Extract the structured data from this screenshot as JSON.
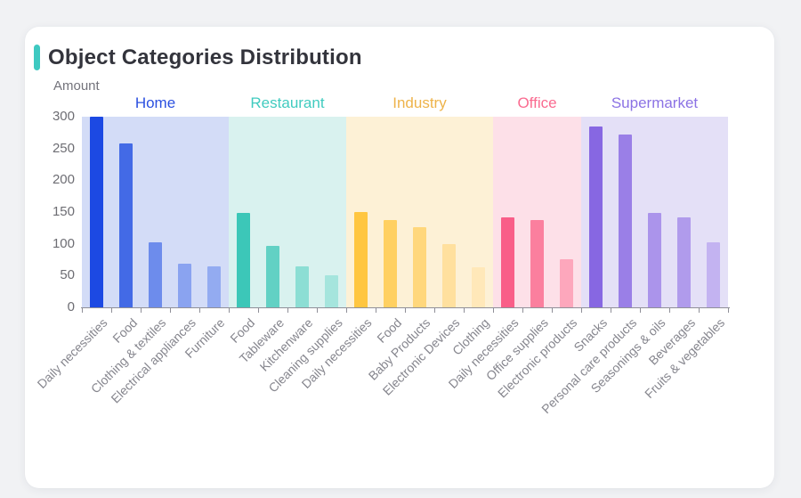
{
  "card": {
    "title": "Object Categories Distribution",
    "accent_color": "#3ec9c1"
  },
  "chart_data": {
    "type": "bar",
    "title": "Object Categories Distribution",
    "ylabel": "Amount",
    "xlabel": "",
    "ylim": [
      0,
      300
    ],
    "yticks": [
      0,
      50,
      100,
      150,
      200,
      250,
      300
    ],
    "grid": false,
    "legend_position": "none",
    "groups": [
      {
        "name": "Home",
        "label_color": "#2b50e0",
        "band_color": "#d3dcf7",
        "bar_colors": [
          "#1c49e3",
          "#436ae6",
          "#6d8cec",
          "#8aa3f0",
          "#93abf1"
        ],
        "items": [
          {
            "label": "Daily necessities",
            "value": 300
          },
          {
            "label": "Food",
            "value": 258
          },
          {
            "label": "Clothing & textiles",
            "value": 102
          },
          {
            "label": "Electrical appliances",
            "value": 69
          },
          {
            "label": "Furniture",
            "value": 64
          }
        ]
      },
      {
        "name": "Restaurant",
        "label_color": "#40cbbf",
        "band_color": "#d9f2ef",
        "bar_colors": [
          "#3cc7b8",
          "#62d1c4",
          "#8cded4",
          "#a5e5dd"
        ],
        "items": [
          {
            "label": "Food",
            "value": 148
          },
          {
            "label": "Tableware",
            "value": 97
          },
          {
            "label": "Kitchenware",
            "value": 65
          },
          {
            "label": "Cleaning supplies",
            "value": 50
          }
        ]
      },
      {
        "name": "Industry",
        "label_color": "#eeb34a",
        "band_color": "#fdf1d6",
        "bar_colors": [
          "#ffc640",
          "#ffd061",
          "#ffd77c",
          "#ffe09e",
          "#ffe8b9"
        ],
        "items": [
          {
            "label": "Daily necessities",
            "value": 150
          },
          {
            "label": "Food",
            "value": 138
          },
          {
            "label": "Baby Products",
            "value": 126
          },
          {
            "label": "Electronic Devices",
            "value": 100
          },
          {
            "label": "Clothing",
            "value": 63
          }
        ]
      },
      {
        "name": "Office",
        "label_color": "#fa6b90",
        "band_color": "#fde0e8",
        "bar_colors": [
          "#f95e88",
          "#fb7f9e",
          "#fda7bc"
        ],
        "items": [
          {
            "label": "Daily necessities",
            "value": 142
          },
          {
            "label": "Office supplies",
            "value": 138
          },
          {
            "label": "Electronic products",
            "value": 75
          }
        ]
      },
      {
        "name": "Supermarket",
        "label_color": "#8b72e4",
        "band_color": "#e4e0f7",
        "bar_colors": [
          "#8767e2",
          "#9a7fe7",
          "#ab94eb",
          "#b09bec",
          "#c3b3f1"
        ],
        "items": [
          {
            "label": "Snacks",
            "value": 285
          },
          {
            "label": "Personal care products",
            "value": 272
          },
          {
            "label": "Seasonings & oils",
            "value": 148
          },
          {
            "label": "Beverages",
            "value": 141
          },
          {
            "label": "Fruits & vegetables",
            "value": 102
          }
        ]
      }
    ]
  }
}
